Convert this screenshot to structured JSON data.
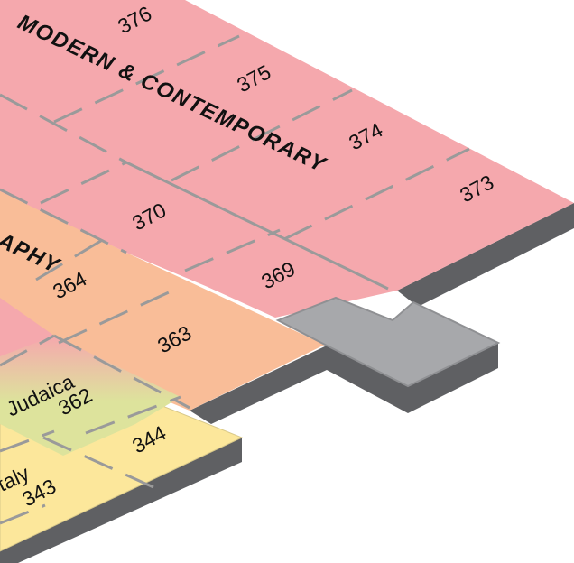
{
  "map": {
    "zones": {
      "modern_contemporary": "MODERN & CONTEMPORARY",
      "photography_partial": "APHY"
    },
    "sub_areas": {
      "judaica": "Judaica",
      "italy": "Italy"
    },
    "rooms": {
      "r376": "376",
      "r375": "375",
      "r374": "374",
      "r373": "373",
      "r370": "370",
      "r369": "369",
      "r364": "364",
      "r363": "363",
      "r362": "362",
      "r344": "344",
      "r343": "343"
    },
    "colors": {
      "modern_contemporary": "#f5a8ad",
      "photography": "#f9bd98",
      "judaica": "#dde39c",
      "italy": "#fce79b",
      "service_area": "#a7a8ab",
      "floor_edge": "#5f6063",
      "walls": "#9a9a9a"
    }
  }
}
